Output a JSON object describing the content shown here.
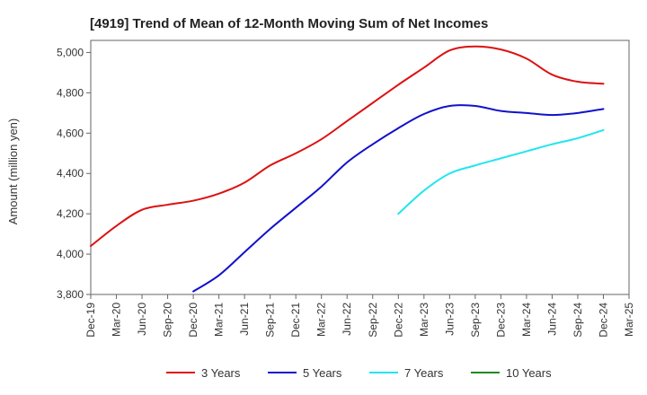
{
  "chart_data": {
    "type": "line",
    "title": "[4919]  Trend of Mean of 12-Month Moving Sum of Net Incomes",
    "xlabel": "",
    "ylabel": "Amount (million yen)",
    "ylim": [
      3800,
      5060
    ],
    "yticks": [
      3800,
      4000,
      4200,
      4400,
      4600,
      4800,
      5000
    ],
    "ytick_labels": [
      "3,800",
      "4,000",
      "4,200",
      "4,400",
      "4,600",
      "4,800",
      "5,000"
    ],
    "x_tick_labels": [
      "Dec-19",
      "Mar-20",
      "Jun-20",
      "Sep-20",
      "Dec-20",
      "Mar-21",
      "Jun-21",
      "Sep-21",
      "Dec-21",
      "Mar-22",
      "Jun-22",
      "Sep-22",
      "Dec-22",
      "Mar-23",
      "Jun-23",
      "Sep-23",
      "Dec-23",
      "Mar-24",
      "Jun-24",
      "Sep-24",
      "Dec-24",
      "Mar-25"
    ],
    "grid": true,
    "legend_position": "bottom",
    "series": [
      {
        "name": "3 Years",
        "color": "#dd1111",
        "points": [
          [
            "Dec-19",
            4040
          ],
          [
            "Mar-20",
            4140
          ],
          [
            "Jun-20",
            4220
          ],
          [
            "Sep-20",
            4245
          ],
          [
            "Dec-20",
            4265
          ],
          [
            "Mar-21",
            4300
          ],
          [
            "Jun-21",
            4355
          ],
          [
            "Sep-21",
            4440
          ],
          [
            "Dec-21",
            4500
          ],
          [
            "Mar-22",
            4570
          ],
          [
            "Jun-22",
            4660
          ],
          [
            "Sep-22",
            4750
          ],
          [
            "Dec-22",
            4840
          ],
          [
            "Mar-23",
            4925
          ],
          [
            "Jun-23",
            5010
          ],
          [
            "Sep-23",
            5030
          ],
          [
            "Dec-23",
            5015
          ],
          [
            "Mar-24",
            4970
          ],
          [
            "Jun-24",
            4890
          ],
          [
            "Sep-24",
            4855
          ],
          [
            "Dec-24",
            4845
          ]
        ]
      },
      {
        "name": "5 Years",
        "color": "#1111cc",
        "points": [
          [
            "Dec-20",
            3815
          ],
          [
            "Mar-21",
            3895
          ],
          [
            "Jun-21",
            4010
          ],
          [
            "Sep-21",
            4125
          ],
          [
            "Dec-21",
            4230
          ],
          [
            "Mar-22",
            4335
          ],
          [
            "Jun-22",
            4455
          ],
          [
            "Sep-22",
            4545
          ],
          [
            "Dec-22",
            4625
          ],
          [
            "Mar-23",
            4695
          ],
          [
            "Jun-23",
            4735
          ],
          [
            "Sep-23",
            4735
          ],
          [
            "Dec-23",
            4710
          ],
          [
            "Mar-24",
            4700
          ],
          [
            "Jun-24",
            4690
          ],
          [
            "Sep-24",
            4700
          ],
          [
            "Dec-24",
            4720
          ]
        ]
      },
      {
        "name": "7 Years",
        "color": "#22e5ee",
        "points": [
          [
            "Dec-22",
            4200
          ],
          [
            "Mar-23",
            4315
          ],
          [
            "Jun-23",
            4400
          ],
          [
            "Sep-23",
            4440
          ],
          [
            "Dec-23",
            4475
          ],
          [
            "Mar-24",
            4510
          ],
          [
            "Jun-24",
            4545
          ],
          [
            "Sep-24",
            4575
          ],
          [
            "Dec-24",
            4615
          ]
        ]
      },
      {
        "name": "10 Years",
        "color": "#228822",
        "points": []
      }
    ]
  }
}
